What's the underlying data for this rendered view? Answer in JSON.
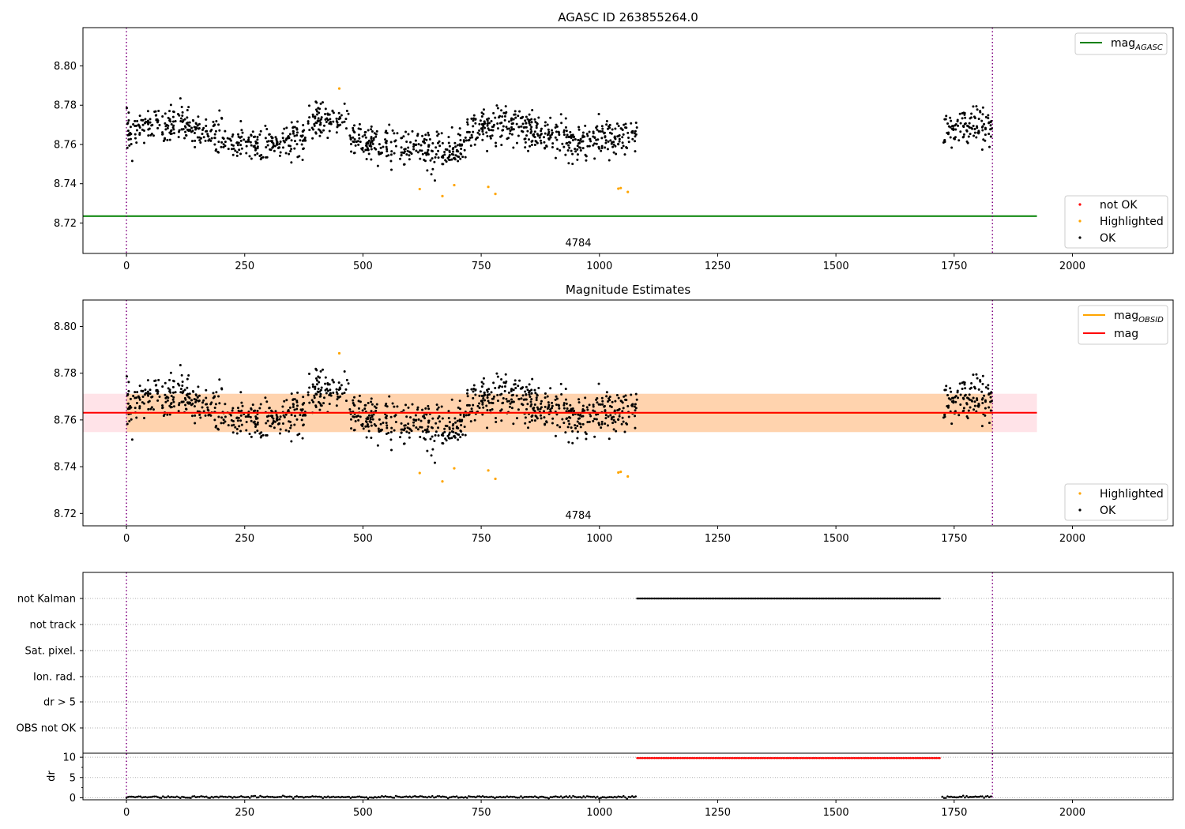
{
  "chart_data": [
    {
      "type": "scatter",
      "title": "AGASC ID 263855264.0",
      "xlim": [
        -92,
        2213
      ],
      "ylim": [
        8.7045,
        8.8195
      ],
      "xticks": [
        0,
        250,
        500,
        750,
        1000,
        1250,
        1500,
        1750,
        2000
      ],
      "yticks": [
        8.72,
        8.74,
        8.76,
        8.78,
        8.8
      ],
      "ytick_labels": [
        "8.72",
        "8.74",
        "8.76",
        "8.78",
        "8.80"
      ],
      "vlines": [
        0,
        1831
      ],
      "annotation": {
        "text": "4784",
        "x": 915
      },
      "reference_line": {
        "name": "mag_AGASC",
        "value": 8.7235,
        "x_range": [
          -92,
          1925
        ],
        "color": "#008000"
      },
      "legend_top": [
        {
          "label": "mag",
          "sub": "AGASC",
          "color": "#008000"
        }
      ],
      "legend_bottom": [
        {
          "label": "not OK",
          "color": "#ff0000"
        },
        {
          "label": "Highlighted",
          "color": "#ffa500"
        },
        {
          "label": "OK",
          "color": "#000000"
        }
      ],
      "series": [
        {
          "name": "OK",
          "color": "#000000",
          "segments": [
            [
              0,
              1080
            ],
            [
              1725,
              1830
            ]
          ],
          "base": 8.7635,
          "spread": 0.0045
        },
        {
          "name": "Highlighted",
          "color": "#ffa500",
          "x": [
            450,
            620,
            668,
            693,
            765,
            780,
            1040,
            1045,
            1060
          ],
          "y": [
            8.7885,
            8.7373,
            8.7337,
            8.7393,
            8.7384,
            8.7348,
            8.7375,
            8.7378,
            8.7358
          ]
        }
      ]
    },
    {
      "type": "scatter",
      "title": "Magnitude Estimates",
      "xlim": [
        -92,
        2213
      ],
      "ylim": [
        8.7147,
        8.8113
      ],
      "xticks": [
        0,
        250,
        500,
        750,
        1000,
        1250,
        1500,
        1750,
        2000
      ],
      "yticks": [
        8.72,
        8.74,
        8.76,
        8.78,
        8.8
      ],
      "ytick_labels": [
        "8.72",
        "8.74",
        "8.76",
        "8.78",
        "8.80"
      ],
      "vlines": [
        0,
        1831
      ],
      "annotation": {
        "text": "4784",
        "x": 915
      },
      "bands": [
        {
          "name": "mag",
          "x_range": [
            -92,
            1925
          ],
          "y_range": [
            8.7548,
            8.7712
          ],
          "color": "#ffc0cb",
          "opacity": 0.45
        },
        {
          "name": "mag_OBSID",
          "x_range": [
            0,
            1831
          ],
          "y_range": [
            8.7548,
            8.7712
          ],
          "color": "#ffa500",
          "opacity": 0.25
        }
      ],
      "lines": [
        {
          "name": "mag_OBSID",
          "value": 8.763,
          "x_range": [
            0,
            1831
          ],
          "color": "#ffa500"
        },
        {
          "name": "mag",
          "value": 8.7631,
          "x_range": [
            -92,
            1925
          ],
          "color": "#ff0000"
        }
      ],
      "legend_top": [
        {
          "label": "mag",
          "sub": "OBSID",
          "color": "#ffa500"
        },
        {
          "label": "mag",
          "sub": "",
          "color": "#ff0000"
        }
      ],
      "legend_bottom": [
        {
          "label": "Highlighted",
          "color": "#ffa500"
        },
        {
          "label": "OK",
          "color": "#000000"
        }
      ]
    },
    {
      "type": "scatter",
      "title": "",
      "xlim": [
        -92,
        2213
      ],
      "xticks": [
        0,
        250,
        500,
        750,
        1000,
        1250,
        1500,
        1750,
        2000
      ],
      "vlines": [
        0,
        1831
      ],
      "flag_rows": [
        "not Kalman",
        "not track",
        "Sat. pixel.",
        "Ion. rad.",
        "dr > 5",
        "OBS not OK"
      ],
      "flag_data": [
        {
          "row": "not Kalman",
          "x_range": [
            1080,
            1722
          ],
          "color": "#000000"
        }
      ],
      "dr_panel": {
        "ylabel": "dr",
        "ylim": [
          -0.5,
          11
        ],
        "yticks": [
          0,
          5,
          10
        ],
        "series": [
          {
            "name": "dr",
            "color": "#000000",
            "segments": [
              [
                0,
                1080
              ],
              [
                1725,
                1830
              ]
            ],
            "value": 0.2
          },
          {
            "name": "dr not Kalman",
            "color": "#ff0000",
            "segments": [
              [
                1080,
                1722
              ]
            ],
            "value": 9.8
          }
        ]
      }
    }
  ]
}
